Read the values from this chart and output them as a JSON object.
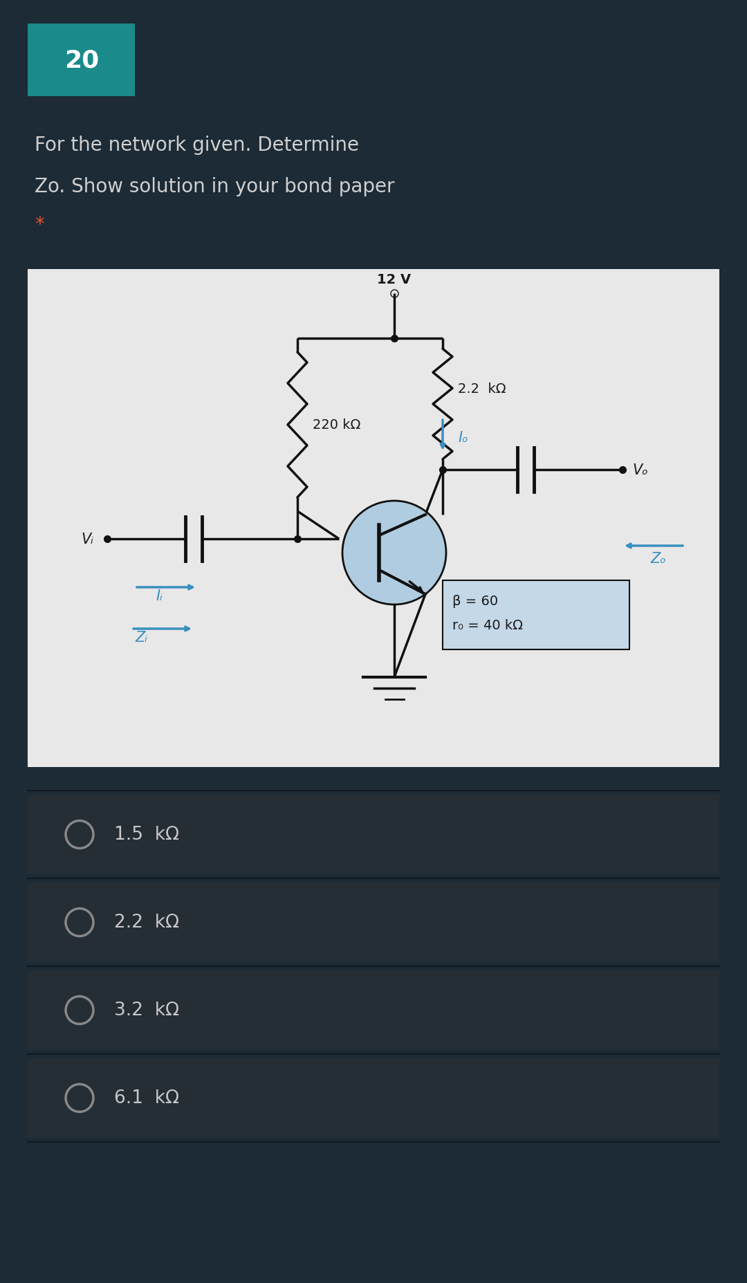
{
  "bg_dark": "#1c2b36",
  "bg_circuit": "#e8e8e8",
  "teal_box_color": "#1a8a8a",
  "question_number": "20",
  "question_line1": "For the network given. Determine",
  "question_line2": "Zo. Show solution in your bond paper",
  "asterisk": "*",
  "asterisk_color": "#e05030",
  "text_color": "#d0d0d0",
  "circuit_text_color": "#1a1a1a",
  "blue_color": "#3a8fc0",
  "supply_label": "12 V",
  "r1_label": "2.2  kΩ",
  "r2_label": "220 kΩ",
  "beta_label": "β = 60",
  "ro_label": "r₀ = 40 kΩ",
  "Io_label": "Iₒ",
  "Vo_label": "Vₒ",
  "Vi_label": "Vᵢ",
  "Ii_label": "Iᵢ",
  "Zi_label": "Zᵢ",
  "Zo_label": "Zₒ",
  "options": [
    "1.5  kΩ",
    "2.2  kΩ",
    "3.2  kΩ",
    "6.1  kΩ"
  ],
  "option_bg": "#252d35",
  "option_text_color": "#c8c8c8",
  "separator_color": "#111820"
}
